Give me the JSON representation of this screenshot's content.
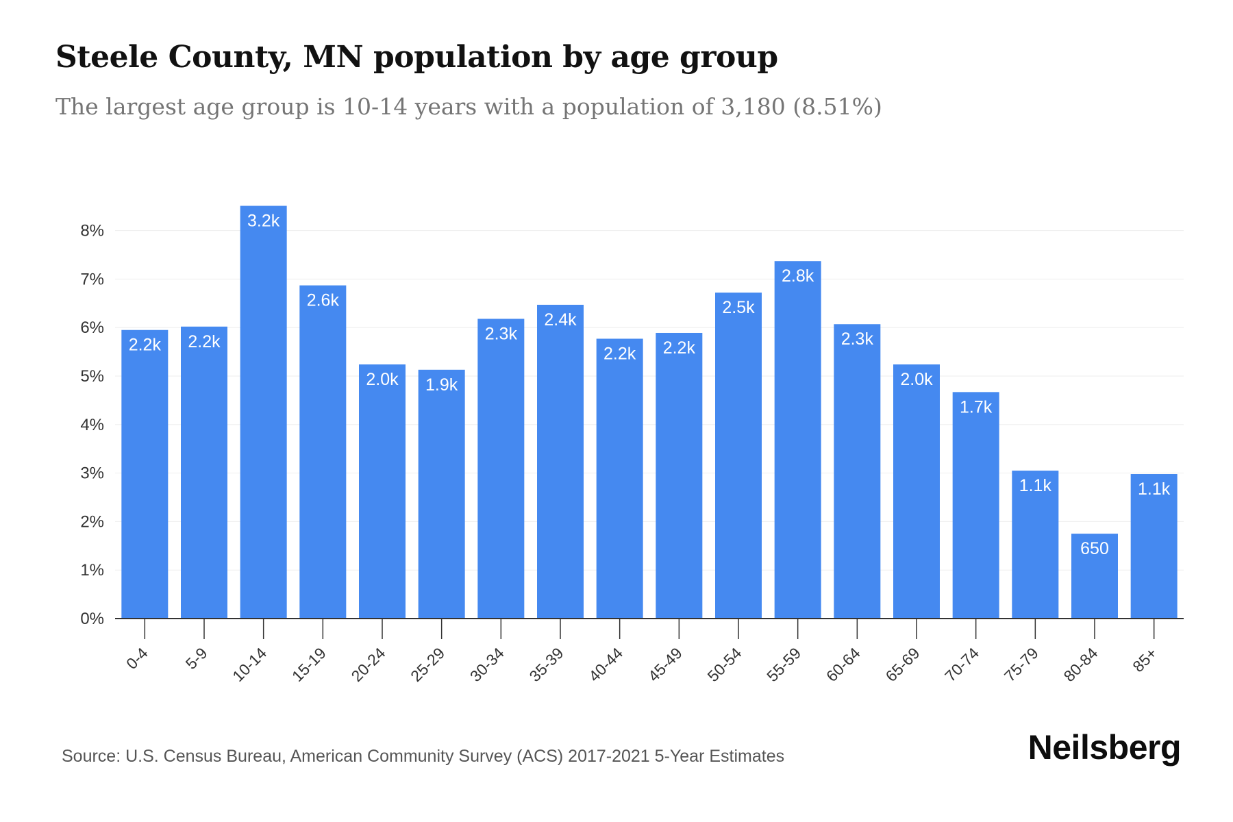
{
  "header": {
    "title": "Steele County, MN population by age group",
    "subtitle": "The largest age group is 10-14 years with a population of 3,180 (8.51%)"
  },
  "footer": {
    "source": "Source: U.S. Census Bureau, American Community Survey (ACS) 2017-2021 5-Year Estimates",
    "logo_text": "Neilsberg"
  },
  "colors": {
    "bar": "#4589f0",
    "grid": "#eeeeee",
    "axis": "#333333"
  },
  "chart_data": {
    "type": "bar",
    "title": "Steele County, MN population by age group",
    "subtitle": "The largest age group is 10-14 years with a population of 3,180 (8.51%)",
    "xlabel": "",
    "ylabel": "",
    "categories": [
      "0-4",
      "5-9",
      "10-14",
      "15-19",
      "20-24",
      "25-29",
      "30-34",
      "35-39",
      "40-44",
      "45-49",
      "50-54",
      "55-59",
      "60-64",
      "65-69",
      "70-74",
      "75-79",
      "80-84",
      "85+"
    ],
    "values": [
      5.95,
      6.02,
      8.51,
      6.87,
      5.24,
      5.13,
      6.18,
      6.47,
      5.77,
      5.89,
      6.72,
      7.37,
      6.07,
      5.24,
      4.67,
      3.05,
      1.75,
      2.98
    ],
    "value_unit": "%",
    "data_labels": [
      "2.2k",
      "2.2k",
      "3.2k",
      "2.6k",
      "2.0k",
      "1.9k",
      "2.3k",
      "2.4k",
      "2.2k",
      "2.2k",
      "2.5k",
      "2.8k",
      "2.3k",
      "2.0k",
      "1.7k",
      "1.1k",
      "650",
      "1.1k"
    ],
    "ylim": [
      0,
      8.5
    ],
    "yticks": [
      0,
      1,
      2,
      3,
      4,
      5,
      6,
      7,
      8
    ],
    "ytick_labels": [
      "0%",
      "1%",
      "2%",
      "3%",
      "4%",
      "5%",
      "6%",
      "7%",
      "8%"
    ],
    "grid": true,
    "legend": "none"
  }
}
